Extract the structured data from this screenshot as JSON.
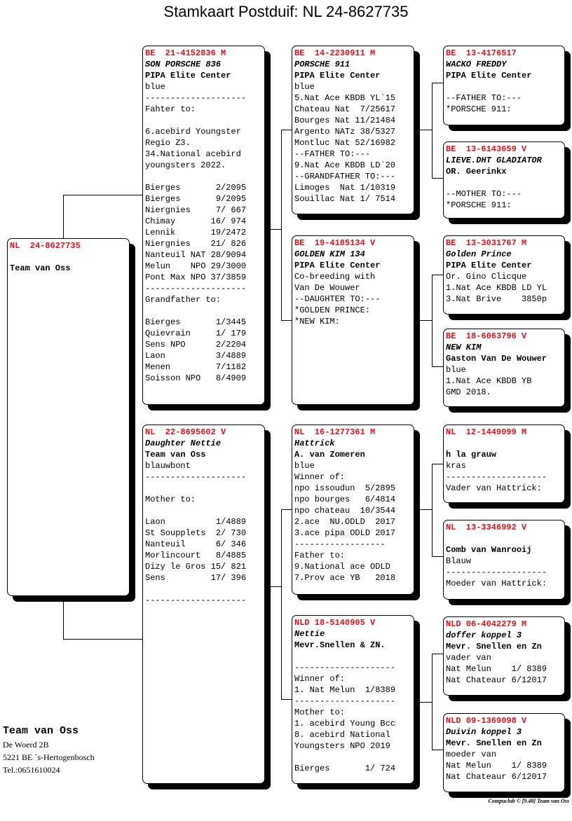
{
  "title": "Stamkaart Postduif: NL  24-8627735",
  "pigeons": {
    "subject": [
      "NL  24-8627735",
      "",
      "Team van Oss"
    ],
    "father": [
      "BE  21-4152836 M",
      "SON PORSCHE 836",
      "PIPA Elite Center",
      "blue",
      "--------------------",
      "Fahter to:",
      "",
      "6.acebird Youngster",
      "Regio Z3.",
      "34.National acebird",
      "youngsters 2022.",
      "",
      "Bierges       2/2095",
      "Bierges       9/2095",
      "Niergnies     7/ 667",
      "Chimay       16/ 974",
      "Lennik       19/2472",
      "Niergnies    21/ 826",
      "Nanteuil NAT 28/9094",
      "Melun    NPO 29/3000",
      "Pont Max NPO 37/3859",
      "--------------------",
      "Grandfather to:",
      "",
      "Bierges       1/3445",
      "Quievrain     1/ 179",
      "Sens NPO      2/2204",
      "Laon          3/4889",
      "Menen         7/1182",
      "Soisson NPO   8/4909"
    ],
    "mother": [
      "NL  22-8695602 V",
      "Daughter Nettie",
      "Team van Oss",
      "blauwbont",
      "--------------------",
      "",
      "Mother to:",
      "",
      "Laon          1/4889",
      "St Soupplets  2/ 730",
      "Nanteuil      6/ 346",
      "Morlincourt   8/4885",
      "Dizy le Gros 15/ 821",
      "Sens         17/ 396",
      "",
      "--------------------"
    ],
    "ff": [
      "BE  14-2230911 M",
      "PORSCHE 911",
      "PIPA Elite Center",
      "blue",
      "5.Nat Ace KBDB YL`15",
      "Chateau Nat  7/25617",
      "Bourges Nat 11/21484",
      "Argento NATz 38/5327",
      "Montluc Nat 52/16982",
      "--FATHER TO:---",
      "9.Nat Ace KBDB LD`20",
      "--GRANDFATHER TO:---",
      "Limoges  Nat 1/10319",
      "Souillac Nat 1/ 7514"
    ],
    "fm": [
      "BE  19-4185134 V",
      "GOLDEN KIM 134",
      "PIPA Elite Center",
      "Co-breeding with",
      "Van De Wouwer",
      "--DAUGHTER TO:---",
      "*GOLDEN PRINCE:",
      "*NEW KIM:"
    ],
    "mf": [
      "NL  16-1277361 M",
      "Hattrick",
      "A. van Zomeren",
      "blue",
      "Winner of:",
      "npo issoudun  5/2895",
      "npo bourges   6/4814",
      "npo chateau  10/3544",
      "2.ace  NU.ODLD  2017",
      "3.ace pipa ODLD 2017",
      "------------------",
      "Father to:",
      "9.National ace ODLD",
      "7.Prov ace YB   2018"
    ],
    "mm": [
      "NLD 18-5140905 V",
      "Nettie",
      "Mevr.Snellen & ZN.",
      "",
      "--------------------",
      "Winner of:",
      "1. Nat Melun  1/8389",
      "--------------------",
      "Mother to:",
      "1. acebird Young Bcc",
      "8. acebird National",
      "Youngsters NPO 2019",
      "",
      "Bierges       1/ 724"
    ],
    "fff": [
      "BE  13-4176517",
      "WACKO FREDDY",
      "PIPA Elite Center",
      "",
      "--FATHER TO:---",
      "*PORSCHE 911:"
    ],
    "ffm": [
      "BE  13-6143659 V",
      "LIEVE.DHT GLADIATOR",
      "OR. Geerinkx",
      "",
      "--MOTHER TO:---",
      "*PORSCHE 911:"
    ],
    "fmf": [
      "BE  13-3031767 M",
      "Golden Prince",
      "PIPA Elite Center",
      "Or. Gino Clicque",
      "1.Nat Ace KBDB LD YL",
      "3.Nat Brive    3850p"
    ],
    "fmm": [
      "BE  18-6063796 V",
      "NEW KIM",
      "Gaston Van De Wouwer",
      "blue",
      "1.Nat Ace KBDB YB",
      "GMD 2018."
    ],
    "mff": [
      "NL  12-1449099 M",
      "",
      "h la grauw",
      "kras",
      "--------------------",
      "Vader van Hattrick:"
    ],
    "mfm": [
      "NL  13-3346992 V",
      "",
      "Comb van Wanrooij",
      "Blauw",
      "--------------------",
      "Moeder van Hattrick:"
    ],
    "mmf": [
      "NLD 06-4042279 M",
      "doffer koppel 3",
      "Mevr. Snellen en Zn",
      "vader van",
      "Nat Melun    1/ 8389",
      "Nat Chateaur 6/12017"
    ],
    "mmm": [
      "NLD 09-1369098 V",
      "Duivin koppel 3",
      "Mevr. Snellen en Zn",
      "moeder van",
      "Nat Melun    1/ 8389",
      "Nat Chateaur 6/12017"
    ]
  },
  "footer": {
    "name": "Team van Oss",
    "address1": "De Woerd 2B",
    "address2": "5221 BE  `s-Hertogenbosch",
    "phone": "Tel.:0651610024"
  },
  "credit": "Compuclub © [9.48]  Team van Oss",
  "colors": {
    "ring": "#e0141e"
  }
}
